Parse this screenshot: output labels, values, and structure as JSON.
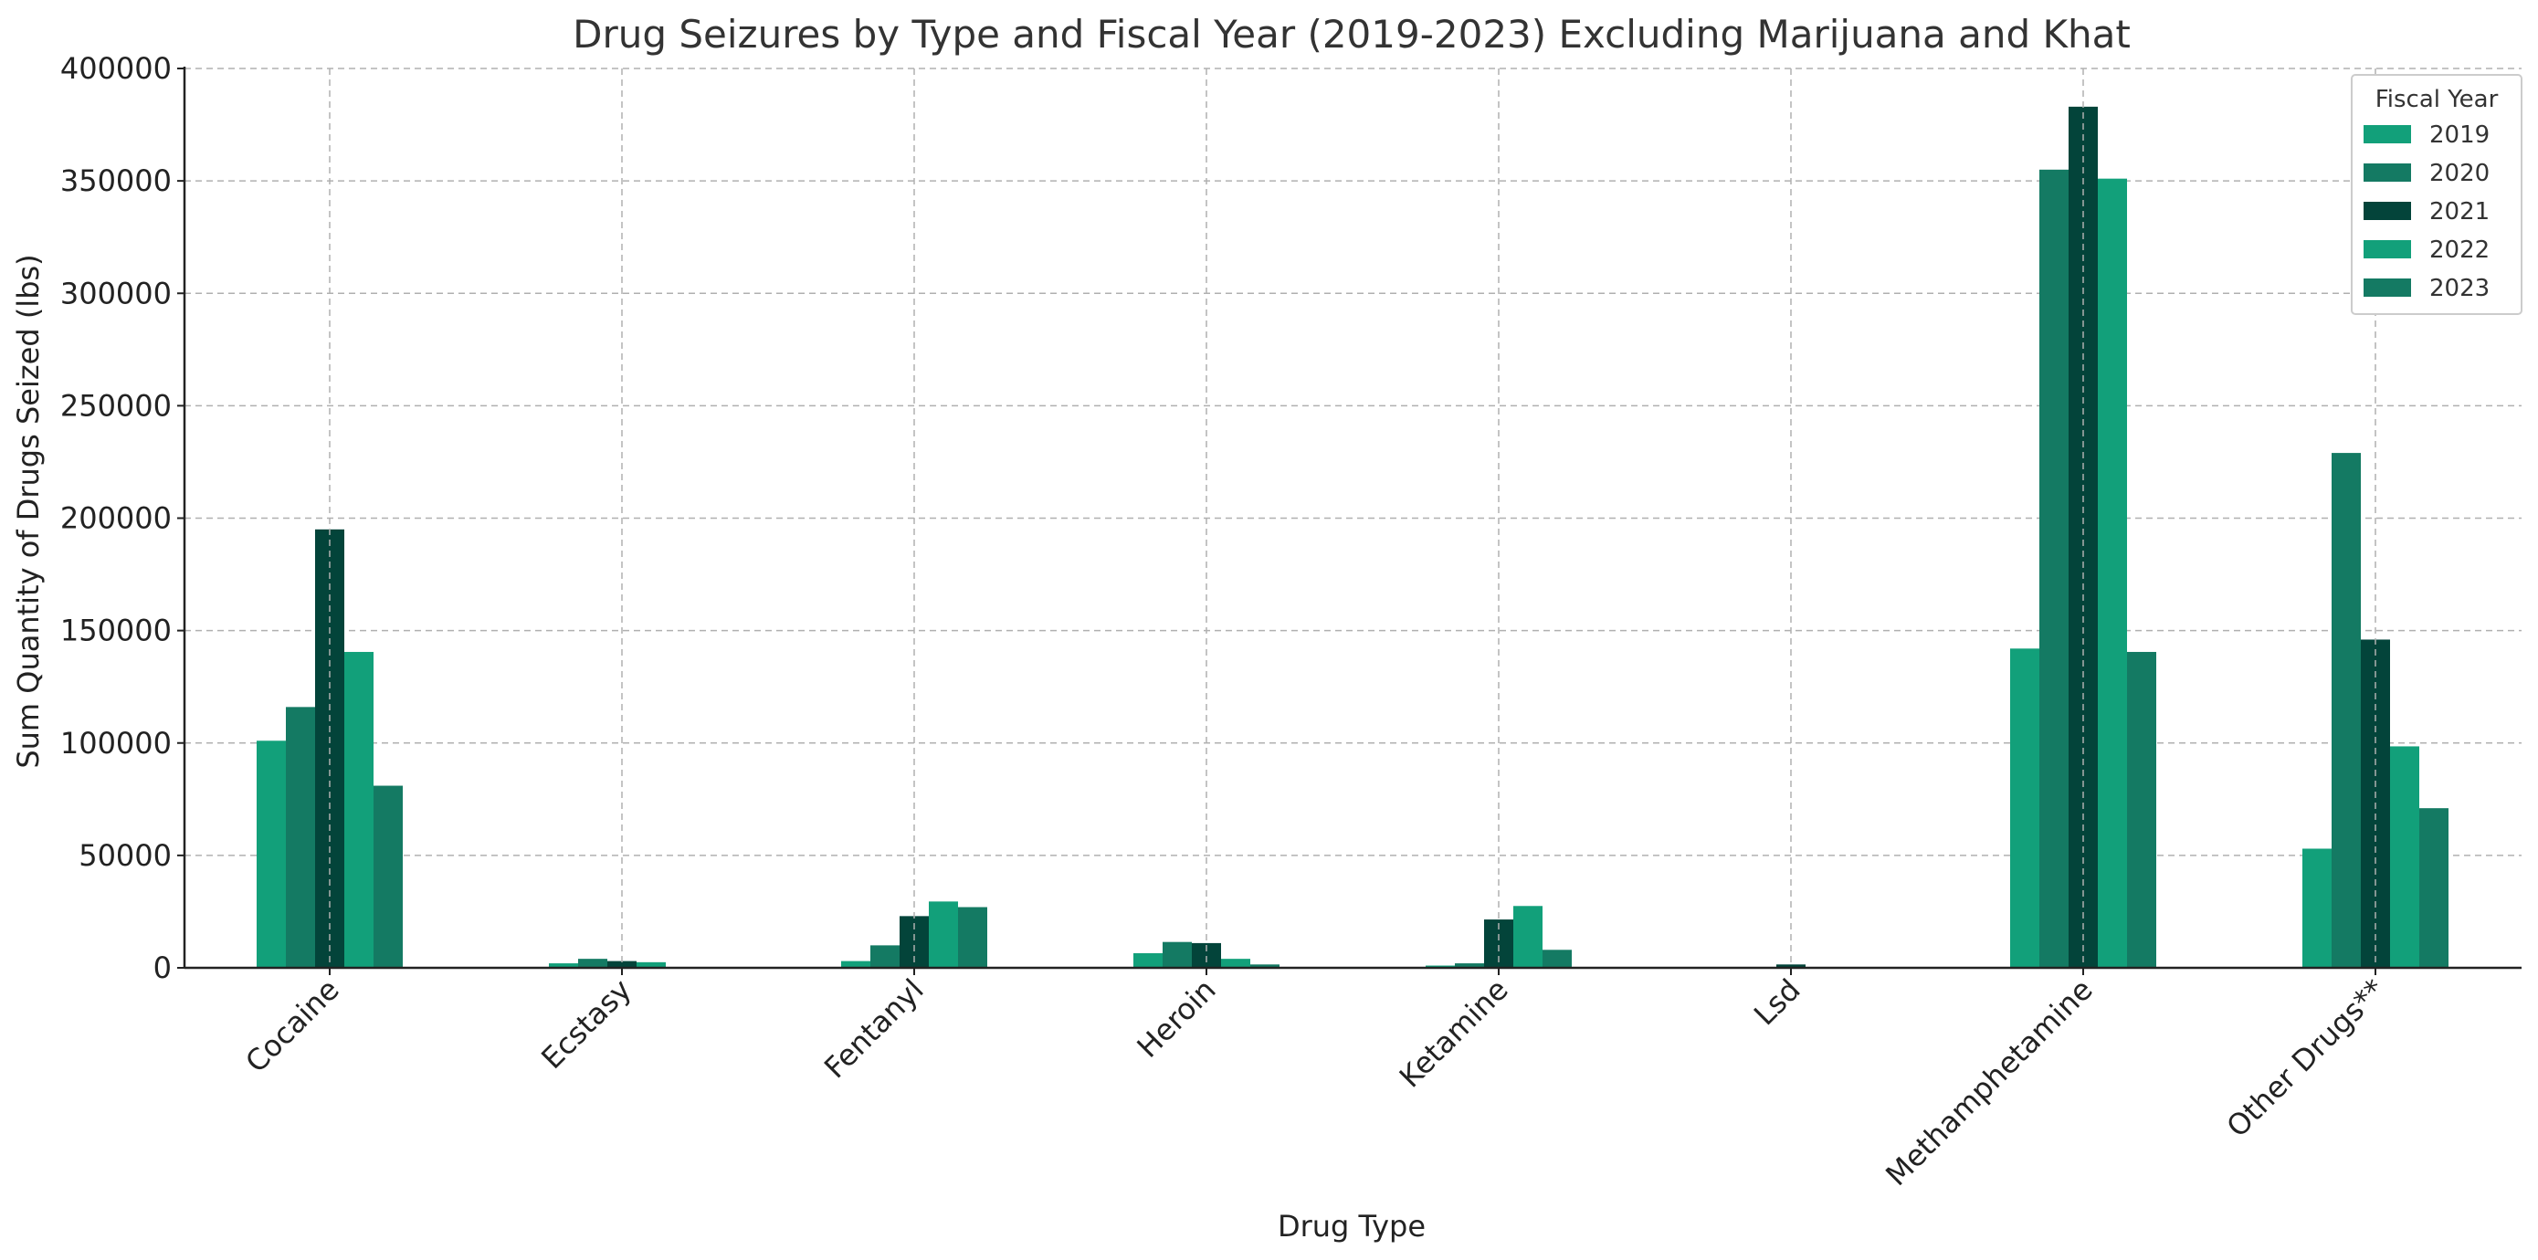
{
  "chart_data": {
    "type": "bar",
    "title": "Drug Seizures by Type and Fiscal Year (2019-2023) Excluding Marijuana and Khat",
    "xlabel": "Drug Type",
    "ylabel": "Sum Quantity of Drugs Seized (lbs)",
    "ylim": [
      0,
      400000
    ],
    "yticks": [
      "0",
      "50000",
      "100000",
      "150000",
      "200000",
      "250000",
      "300000",
      "350000",
      "400000"
    ],
    "grid": true,
    "legend_position": "top-right",
    "legend_title": "Fiscal Year",
    "categories": [
      "Cocaine",
      "Ecstasy",
      "Fentanyl",
      "Heroin",
      "Ketamine",
      "Lsd",
      "Methamphetamine",
      "Other Drugs**"
    ],
    "series": [
      {
        "name": "2019",
        "color": "#12A07A",
        "values": [
          101000,
          2000,
          3000,
          6500,
          1000,
          0,
          142000,
          53000
        ]
      },
      {
        "name": "2020",
        "color": "#147A63",
        "values": [
          116000,
          4000,
          10000,
          11500,
          2000,
          0,
          355000,
          229000
        ]
      },
      {
        "name": "2021",
        "color": "#03443A",
        "values": [
          195000,
          3000,
          23000,
          11000,
          21500,
          1500,
          383000,
          146000
        ]
      },
      {
        "name": "2022",
        "color": "#12A07A",
        "values": [
          140500,
          2500,
          29500,
          4000,
          27500,
          0,
          351000,
          98500
        ]
      },
      {
        "name": "2023",
        "color": "#147A63",
        "values": [
          81000,
          0,
          27000,
          1500,
          8000,
          0,
          140500,
          71000
        ]
      }
    ]
  }
}
